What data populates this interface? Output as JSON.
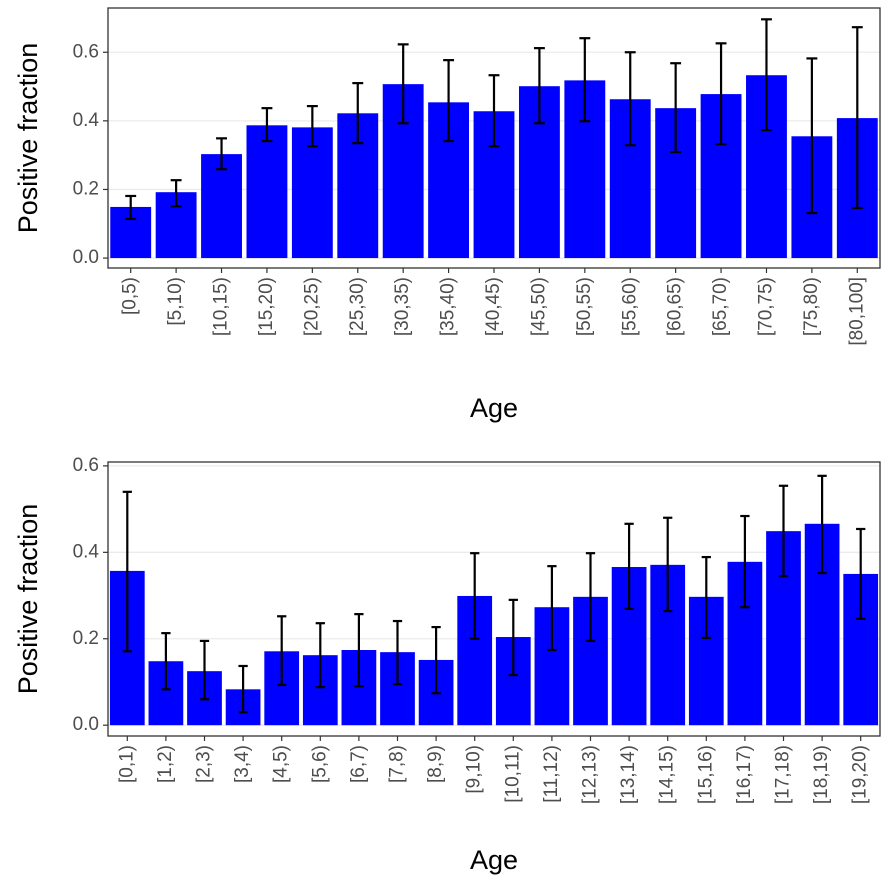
{
  "chart_data": [
    {
      "type": "bar",
      "x_label": "Age",
      "y_label": "Positive fraction",
      "color": "#0000ff",
      "grid": true,
      "categories": [
        "[0,5)",
        "[5,10)",
        "[10,15)",
        "[15,20)",
        "[20,25)",
        "[25,30)",
        "[30,35)",
        "[35,40)",
        "[40,45)",
        "[45,50)",
        "[50,55)",
        "[55,60)",
        "[60,65)",
        "[65,70)",
        "[70,75)",
        "[75,80)",
        "[80,100]"
      ],
      "values": [
        0.149,
        0.192,
        0.303,
        0.387,
        0.381,
        0.422,
        0.507,
        0.454,
        0.428,
        0.501,
        0.518,
        0.463,
        0.437,
        0.478,
        0.533,
        0.355,
        0.408
      ],
      "error_lower": [
        0.114,
        0.151,
        0.259,
        0.341,
        0.326,
        0.335,
        0.393,
        0.341,
        0.326,
        0.393,
        0.399,
        0.329,
        0.309,
        0.332,
        0.373,
        0.131,
        0.146
      ],
      "error_upper": [
        0.181,
        0.227,
        0.349,
        0.437,
        0.443,
        0.51,
        0.623,
        0.577,
        0.533,
        0.612,
        0.641,
        0.6,
        0.568,
        0.626,
        0.696,
        0.582,
        0.673
      ],
      "ylim": [
        -0.029,
        0.729
      ],
      "yticks": [
        {
          "value": 0,
          "label": "0.0"
        },
        0.2,
        0.4,
        0.6
      ]
    },
    {
      "type": "bar",
      "x_label": "Age",
      "y_label": "Positive fraction",
      "color": "#0000ff",
      "grid": true,
      "categories": [
        "[0,1)",
        "[1,2)",
        "[2,3)",
        "[3,4)",
        "[4,5)",
        "[5,6)",
        "[6,7)",
        "[7,8)",
        "[8,9)",
        "[9,10)",
        "[10,11)",
        "[11,12)",
        "[12,13)",
        "[13,14)",
        "[14,15)",
        "[15,16)",
        "[16,17)",
        "[17,18)",
        "[18,19)",
        "[19,20)"
      ],
      "values": [
        0.357,
        0.148,
        0.125,
        0.083,
        0.171,
        0.162,
        0.174,
        0.169,
        0.151,
        0.299,
        0.204,
        0.273,
        0.297,
        0.366,
        0.371,
        0.297,
        0.378,
        0.449,
        0.466,
        0.35
      ],
      "error_lower": [
        0.171,
        0.083,
        0.06,
        0.03,
        0.093,
        0.088,
        0.09,
        0.095,
        0.074,
        0.2,
        0.116,
        0.174,
        0.195,
        0.269,
        0.264,
        0.202,
        0.273,
        0.345,
        0.352,
        0.246
      ],
      "error_upper": [
        0.54,
        0.213,
        0.195,
        0.137,
        0.252,
        0.236,
        0.257,
        0.241,
        0.227,
        0.398,
        0.29,
        0.368,
        0.398,
        0.466,
        0.48,
        0.389,
        0.484,
        0.554,
        0.577,
        0.454
      ],
      "ylim": [
        -0.025,
        0.609
      ],
      "yticks": [
        {
          "value": 0,
          "label": "0.0"
        },
        0.2,
        0.4,
        0.6
      ]
    }
  ]
}
